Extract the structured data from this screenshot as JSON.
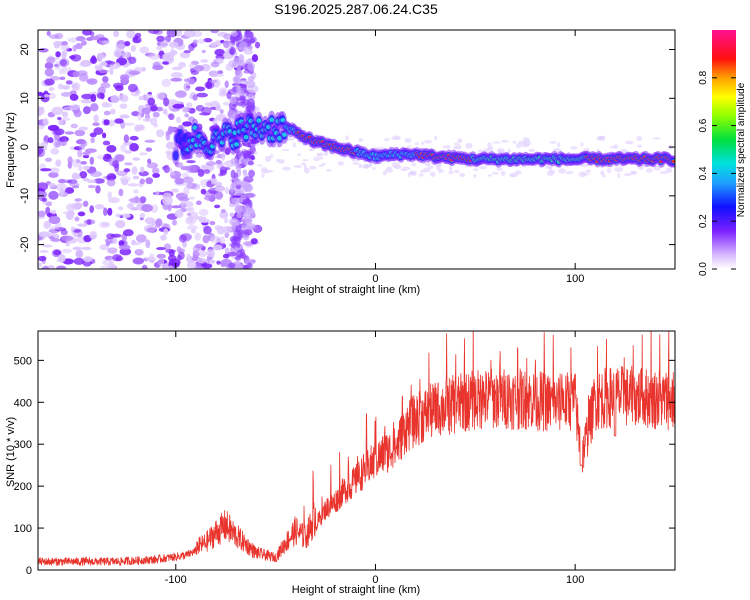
{
  "title": "S196.2025.287.06.24.C35",
  "chart_data": [
    {
      "type": "heatmap",
      "name": "spectrogram",
      "xlabel": "Height of straight line (km)",
      "ylabel": "Frequency (Hz)",
      "xlim": [
        -169,
        150
      ],
      "ylim": [
        -25,
        24
      ],
      "xticks": [
        -100,
        0,
        100
      ],
      "xticklabels": [
        "-100",
        "0",
        "100"
      ],
      "yticks": [
        20,
        10,
        0,
        -10,
        -20
      ],
      "yticklabels": [
        "20",
        "10",
        "0",
        "-10",
        "-20"
      ],
      "ridge": {
        "x": [
          -100,
          -90,
          -80,
          -70,
          -60,
          -50,
          -45,
          -40,
          -30,
          -20,
          -10,
          0,
          10,
          20,
          30,
          50,
          70,
          90,
          100,
          120,
          150
        ],
        "frequency": [
          0,
          2,
          1,
          3,
          4,
          4,
          4,
          3,
          1,
          0,
          -1,
          -2,
          -1.5,
          -1.5,
          -2,
          -2.5,
          -2.5,
          -2.5,
          -2.5,
          -2.5,
          -2.5
        ]
      },
      "colorbar": {
        "label": "Normalized spectral amplitude",
        "range": [
          0,
          1
        ],
        "ticks": [
          0.0,
          0.2,
          0.4,
          0.6,
          0.8
        ],
        "ticklabels": [
          "0.0",
          "0.2",
          "0.4",
          "0.6",
          "0.8"
        ],
        "colormap": "rainbow (white-purple-blue-cyan-green-yellow-orange-red-magenta)"
      }
    },
    {
      "type": "line",
      "name": "snr",
      "xlabel": "Height of straight line (km)",
      "ylabel": "SNR (10 * v/v)",
      "xlim": [
        -169,
        150
      ],
      "ylim": [
        0,
        570
      ],
      "xticks": [
        -100,
        0,
        100
      ],
      "xticklabels": [
        "-100",
        "0",
        "100"
      ],
      "yticks": [
        0,
        100,
        200,
        300,
        400,
        500
      ],
      "yticklabels": [
        "0",
        "100",
        "200",
        "300",
        "400",
        "500"
      ],
      "color": "#e8342c",
      "series": [
        {
          "name": "SNR",
          "x": [
            -169,
            -150,
            -130,
            -110,
            -95,
            -85,
            -80,
            -75,
            -70,
            -60,
            -50,
            -45,
            -40,
            -35,
            -30,
            -25,
            -20,
            -15,
            -10,
            -5,
            0,
            5,
            10,
            15,
            20,
            25,
            30,
            40,
            50,
            60,
            80,
            90,
            100,
            103,
            110,
            120,
            150
          ],
          "y": [
            20,
            20,
            20,
            25,
            35,
            55,
            75,
            90,
            70,
            35,
            25,
            55,
            80,
            65,
            110,
            150,
            170,
            200,
            220,
            250,
            270,
            290,
            300,
            350,
            370,
            385,
            395,
            410,
            420,
            425,
            420,
            410,
            420,
            270,
            420,
            430,
            420
          ]
        }
      ]
    }
  ]
}
